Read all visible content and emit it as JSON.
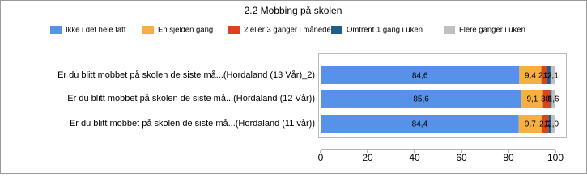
{
  "chart_data": {
    "type": "stacked-barh",
    "title": "2.2 Mobbing på skolen",
    "categories": [
      "Er du blitt mobbet på skolen de siste må...(Hordaland (13 Vår)_2)",
      "Er du blitt mobbet på skolen de siste må...(Hordaland (12 Vår))",
      "Er du blitt mobbet på skolen de siste må...(Hordaland (11 vår))"
    ],
    "series": [
      {
        "name": "Ikke i det hele tatt",
        "color": "#5592e8",
        "values": [
          84.6,
          85.6,
          84.4
        ],
        "value_labels": [
          "84,6",
          "85,6",
          "84,4"
        ]
      },
      {
        "name": "En sjelden gang",
        "color": "#f5b041",
        "values": [
          9.4,
          9.1,
          9.7
        ],
        "value_labels": [
          "9,4",
          "9,1",
          "9,7"
        ]
      },
      {
        "name": "2 eller 3 ganger i måneden",
        "color": "#d9441a",
        "values": [
          2.3,
          3.0,
          2.9
        ],
        "value_labels": [
          "2,3",
          "3,0",
          "2,9"
        ]
      },
      {
        "name": "Omtrent 1 gang i uken",
        "color": "#1d5f8a",
        "values": [
          1.6,
          0.7,
          1.0
        ],
        "value_labels": [
          "1,6",
          "0,7",
          "1,0"
        ]
      },
      {
        "name": "Flere ganger i uken",
        "color": "#c0c0c0",
        "values": [
          2.1,
          1.6,
          2.0
        ],
        "value_labels": [
          "2,1",
          "1,6",
          "2,0"
        ]
      }
    ],
    "xlim": [
      0,
      100
    ],
    "xticks": [
      0,
      20,
      40,
      60,
      80,
      100
    ]
  }
}
